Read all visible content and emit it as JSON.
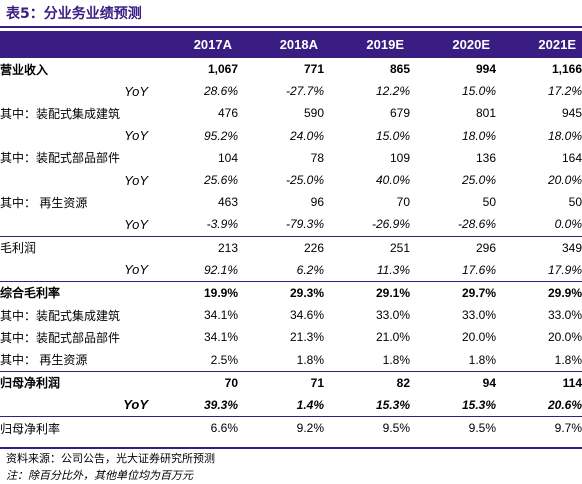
{
  "title": "表5：分业务业绩预测",
  "colors": {
    "accent": "#3a1d82"
  },
  "columns": [
    "2017A",
    "2018A",
    "2019E",
    "2020E",
    "2021E"
  ],
  "rows": [
    {
      "label": "营业收入",
      "values": [
        "1,067",
        "771",
        "865",
        "994",
        "1,166"
      ]
    },
    {
      "label": "YoY",
      "values": [
        "28.6%",
        "-27.7%",
        "12.2%",
        "15.0%",
        "17.2%"
      ]
    },
    {
      "label": "其中：装配式集成建筑",
      "values": [
        "476",
        "590",
        "679",
        "801",
        "945"
      ]
    },
    {
      "label": "YoY",
      "values": [
        "95.2%",
        "24.0%",
        "15.0%",
        "18.0%",
        "18.0%"
      ]
    },
    {
      "label": "其中：装配式部品部件",
      "values": [
        "104",
        "78",
        "109",
        "136",
        "164"
      ]
    },
    {
      "label": "YoY",
      "values": [
        "25.6%",
        "-25.0%",
        "40.0%",
        "25.0%",
        "20.0%"
      ]
    },
    {
      "label": "其中： 再生资源",
      "values": [
        "463",
        "96",
        "70",
        "50",
        "50"
      ]
    },
    {
      "label": "YoY",
      "values": [
        "-3.9%",
        "-79.3%",
        "-26.9%",
        "-28.6%",
        "0.0%"
      ]
    },
    {
      "label": "毛利润",
      "values": [
        "213",
        "226",
        "251",
        "296",
        "349"
      ]
    },
    {
      "label": "YoY",
      "values": [
        "92.1%",
        "6.2%",
        "11.3%",
        "17.6%",
        "17.9%"
      ]
    },
    {
      "label": "综合毛利率",
      "values": [
        "19.9%",
        "29.3%",
        "29.1%",
        "29.7%",
        "29.9%"
      ]
    },
    {
      "label": "其中：装配式集成建筑",
      "values": [
        "34.1%",
        "34.6%",
        "33.0%",
        "33.0%",
        "33.0%"
      ]
    },
    {
      "label": "其中：装配式部品部件",
      "values": [
        "34.1%",
        "21.3%",
        "21.0%",
        "20.0%",
        "20.0%"
      ]
    },
    {
      "label": "其中： 再生资源",
      "values": [
        "2.5%",
        "1.8%",
        "1.8%",
        "1.8%",
        "1.8%"
      ]
    },
    {
      "label": "归母净利润",
      "values": [
        "70",
        "71",
        "82",
        "94",
        "114"
      ]
    },
    {
      "label": "YoY",
      "values": [
        "39.3%",
        "1.4%",
        "15.3%",
        "15.3%",
        "20.6%"
      ]
    },
    {
      "label": "归母净利率",
      "values": [
        "6.6%",
        "9.2%",
        "9.5%",
        "9.5%",
        "9.7%"
      ]
    }
  ],
  "source": "资料来源：公司公告，光大证券研究所预测",
  "note": "注：除百分比外，其他单位均为百万元"
}
